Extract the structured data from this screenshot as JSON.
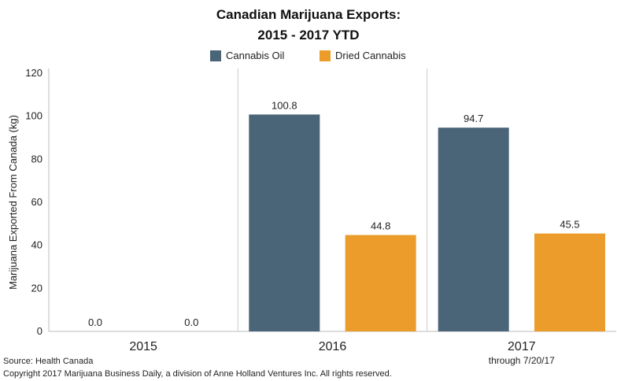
{
  "chart_data": {
    "type": "bar",
    "title_lines": [
      "Canadian Marijuana Exports:",
      "2015 - 2017 YTD"
    ],
    "ylabel": "Marijuana Exported From Canada (kg)",
    "ylim": [
      0,
      120
    ],
    "yticks": [
      0,
      20,
      40,
      60,
      80,
      100,
      120
    ],
    "categories": [
      "2015",
      "2016",
      "2017"
    ],
    "category_notes": [
      "",
      "",
      "through 7/20/17"
    ],
    "series": [
      {
        "name": "Cannabis Oil",
        "color": "#4a6478",
        "values": [
          0.0,
          100.8,
          94.7
        ],
        "labels": [
          "0.0",
          "100.8",
          "94.7"
        ]
      },
      {
        "name": "Dried Cannabis",
        "color": "#eb9c2a",
        "values": [
          0.0,
          44.8,
          45.5
        ],
        "labels": [
          "0.0",
          "44.8",
          "45.5"
        ]
      }
    ],
    "legend_position": "top-center",
    "grid": false
  },
  "footer": {
    "source": "Source: Health Canada",
    "copyright": "Copyright 2017 Marijuana Business Daily, a division of Anne Holland Ventures Inc. All rights reserved."
  }
}
